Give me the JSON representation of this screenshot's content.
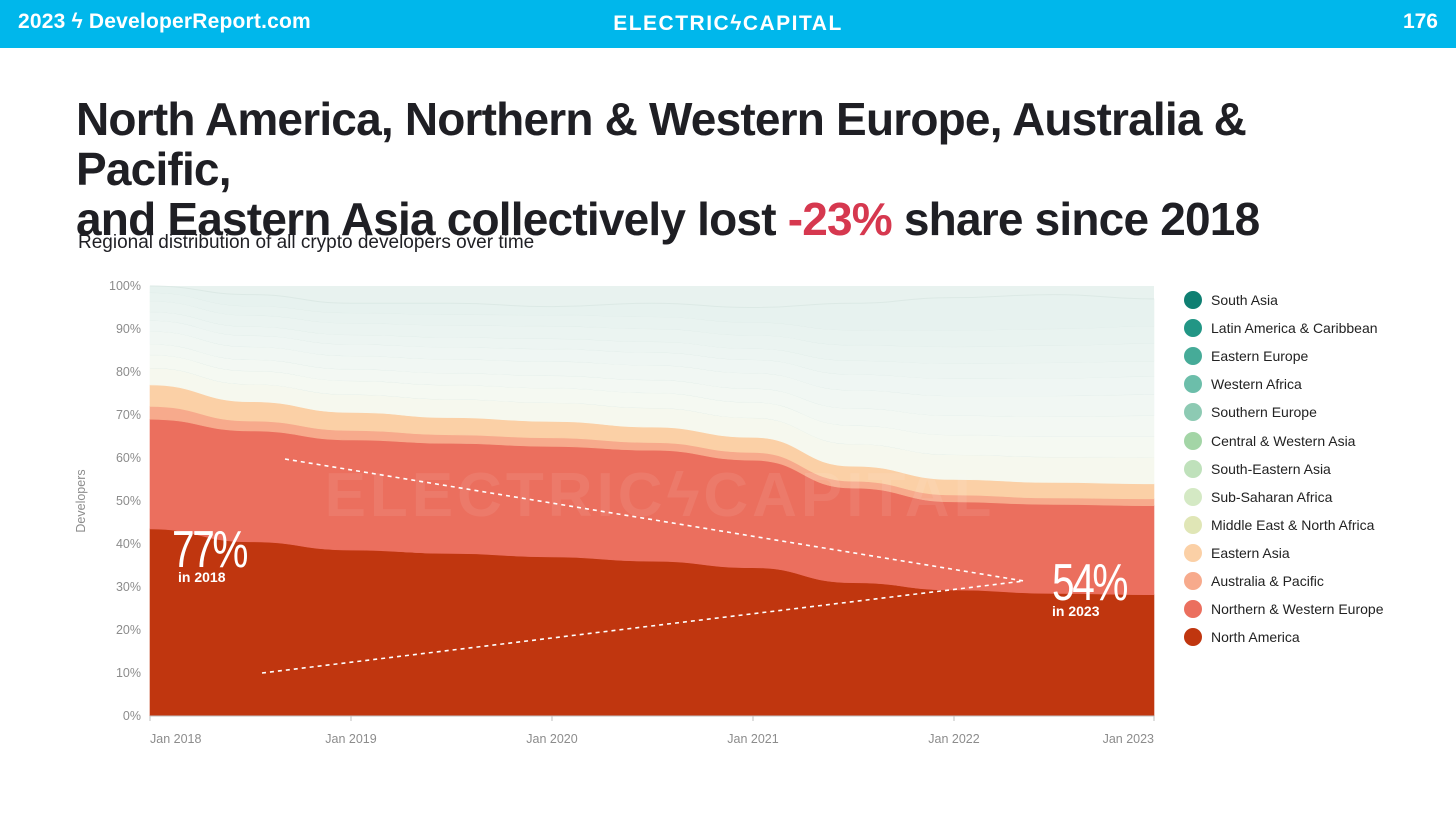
{
  "header": {
    "left_text": "2023 ϟ DeveloperReport.com",
    "center_text": "ELECTRICϟCAPITAL",
    "page_number": "176"
  },
  "headline": {
    "line1": "North America, Northern & Western Europe, Australia & Pacific,",
    "line2_pre": "and Eastern Asia collectively lost ",
    "highlight": "-23%",
    "line2_post": " share since 2018",
    "highlight_color": "#d6384f"
  },
  "chart_subtitle": "Regional distribution of all crypto developers over time",
  "watermark": "ELECTRICϟCAPITAL",
  "chart_data": {
    "type": "area",
    "stacked": true,
    "title": "Regional distribution of all crypto developers over time",
    "ylabel": "Developers",
    "xlabel": "",
    "x": [
      "Jan 2018",
      "Jun 2018",
      "Jan 2019",
      "Jun 2019",
      "Jan 2020",
      "Jun 2020",
      "Jan 2021",
      "Jun 2021",
      "Jan 2022",
      "Jun 2022",
      "Jan 2023"
    ],
    "x_ticks": [
      "Jan 2018",
      "Jan 2019",
      "Jan 2020",
      "Jan 2021",
      "Jan 2022",
      "Jan 2023"
    ],
    "y_ticks": [
      "0%",
      "10%",
      "20%",
      "30%",
      "40%",
      "50%",
      "60%",
      "70%",
      "80%",
      "90%",
      "100%"
    ],
    "ylim": [
      0,
      100
    ],
    "grid": false,
    "legend_position": "right",
    "series": [
      {
        "name": "North America",
        "color": "#c0360f",
        "values": [
          43.5,
          40.5,
          38.6,
          37.8,
          37.0,
          36.0,
          34.5,
          31.0,
          29.3,
          28.5,
          28.2
        ]
      },
      {
        "name": "Northern & Western Europe",
        "color": "#eb6f5e",
        "values": [
          25.5,
          25.8,
          25.6,
          25.6,
          25.7,
          25.8,
          25.0,
          22.0,
          20.5,
          20.7,
          20.7
        ]
      },
      {
        "name": "Australia & Pacific",
        "color": "#f7aa8c",
        "values": [
          3.0,
          2.3,
          2.2,
          2.0,
          2.0,
          1.8,
          1.8,
          1.6,
          1.6,
          1.5,
          1.6
        ]
      },
      {
        "name": "Eastern Asia",
        "color": "#fbd0a6",
        "values": [
          5.0,
          4.5,
          4.2,
          4.0,
          3.8,
          3.6,
          3.5,
          3.5,
          3.6,
          3.6,
          3.5
        ]
      },
      {
        "name": "Middle East & North Africa",
        "color": "#f6f8ee",
        "values": [
          4.0,
          4.1,
          4.2,
          4.3,
          4.4,
          4.5,
          4.6,
          5.2,
          5.8,
          6.0,
          6.2
        ]
      },
      {
        "name": "Sub-Saharan Africa",
        "color": "#f5f9f2",
        "values": [
          3.0,
          3.1,
          3.2,
          3.3,
          3.4,
          3.5,
          3.6,
          4.3,
          4.6,
          4.7,
          4.8
        ]
      },
      {
        "name": "South-Eastern Asia",
        "color": "#f3f8f3",
        "values": [
          2.5,
          2.6,
          2.7,
          2.8,
          2.9,
          3.0,
          3.2,
          4.0,
          4.5,
          4.7,
          4.9
        ]
      },
      {
        "name": "Central & Western Asia",
        "color": "#f1f7f3",
        "values": [
          3.0,
          3.0,
          3.1,
          3.2,
          3.3,
          3.4,
          3.6,
          4.2,
          4.6,
          4.8,
          4.9
        ]
      },
      {
        "name": "Southern Europe",
        "color": "#eff6f3",
        "values": [
          2.5,
          2.6,
          2.7,
          2.8,
          2.9,
          3.0,
          3.1,
          3.7,
          4.0,
          4.1,
          4.2
        ]
      },
      {
        "name": "Western Africa",
        "color": "#edf5f2",
        "values": [
          2.0,
          2.1,
          2.2,
          2.3,
          2.4,
          2.5,
          2.6,
          3.2,
          3.5,
          3.6,
          3.6
        ]
      },
      {
        "name": "Eastern Europe",
        "color": "#ebf4f1",
        "values": [
          2.5,
          2.6,
          2.7,
          2.8,
          2.9,
          3.0,
          3.1,
          3.6,
          3.9,
          4.0,
          4.1
        ]
      },
      {
        "name": "Latin America & Caribbean",
        "color": "#e9f3f0",
        "values": [
          2.0,
          2.2,
          2.4,
          2.5,
          2.6,
          2.8,
          3.0,
          3.5,
          3.8,
          3.9,
          4.0
        ]
      },
      {
        "name": "South Asia",
        "color": "#e7f2ef",
        "values": [
          1.5,
          2.6,
          2.2,
          2.6,
          1.9,
          3.1,
          3.4,
          6.2,
          7.6,
          7.9,
          6.3
        ]
      }
    ],
    "annotations": [
      {
        "big": "77%",
        "small": "in 2018"
      },
      {
        "big": "54%",
        "small": "in 2023"
      }
    ]
  },
  "legend": [
    {
      "label": "South Asia",
      "color": "#0f7f72"
    },
    {
      "label": "Latin America & Caribbean",
      "color": "#229685"
    },
    {
      "label": "Eastern Europe",
      "color": "#46ab98"
    },
    {
      "label": "Western Africa",
      "color": "#6cbeaa"
    },
    {
      "label": "Southern Europe",
      "color": "#8dcab3"
    },
    {
      "label": "Central & Western Asia",
      "color": "#a3d5a6"
    },
    {
      "label": "South-Eastern Asia",
      "color": "#bfe1bb"
    },
    {
      "label": "Sub-Saharan Africa",
      "color": "#d4e9c4"
    },
    {
      "label": "Middle East & North Africa",
      "color": "#e0e6b6"
    },
    {
      "label": "Eastern Asia",
      "color": "#fbd0a6"
    },
    {
      "label": "Australia & Pacific",
      "color": "#f7aa8c"
    },
    {
      "label": "Northern & Western Europe",
      "color": "#eb6f5e"
    },
    {
      "label": "North America",
      "color": "#c0360f"
    }
  ]
}
